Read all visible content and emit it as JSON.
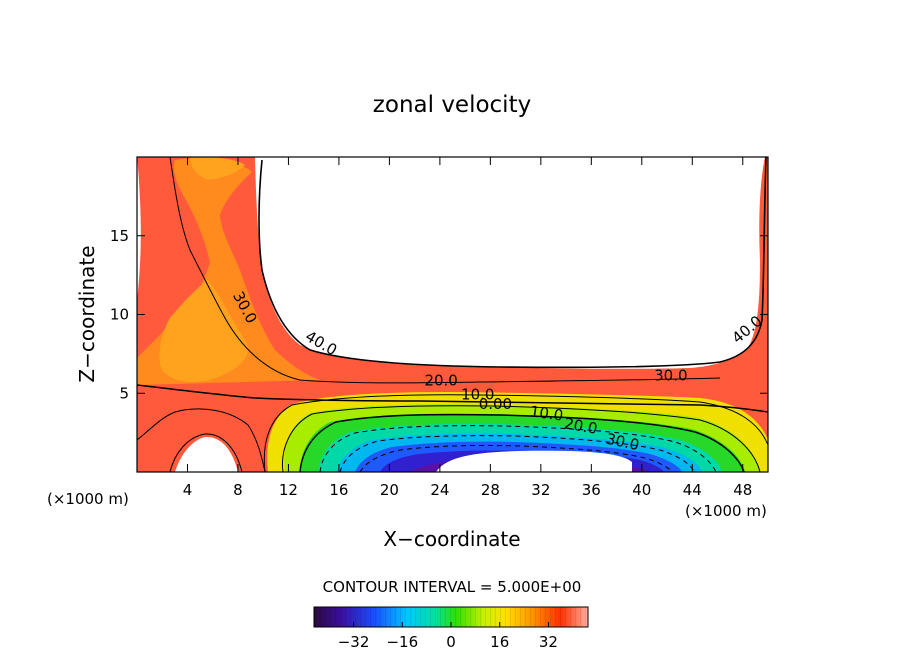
{
  "chart_data": {
    "type": "heatmap",
    "title": "zonal velocity",
    "xlabel": "X−coordinate",
    "ylabel": "Z−coordinate",
    "x_unit_left": "(×1000 m)",
    "x_unit_right": "(×1000 m)",
    "xlim": [
      0,
      50
    ],
    "ylim": [
      0,
      20
    ],
    "x_ticks": [
      4,
      8,
      12,
      16,
      20,
      24,
      28,
      32,
      36,
      40,
      44,
      48
    ],
    "y_ticks": [
      5,
      10,
      15
    ],
    "grid": false,
    "contour_interval_label": "CONTOUR INTERVAL = 5.000E+00",
    "contour_interval": 5,
    "contour_labels": [
      {
        "text": "30.0",
        "x": 8.2,
        "y": 10.3
      },
      {
        "text": "40.0",
        "x": 14.4,
        "y": 7.9
      },
      {
        "text": "40.0",
        "x": 48.6,
        "y": 8.8
      },
      {
        "text": "20.0",
        "x": 24.1,
        "y": 5.5
      },
      {
        "text": "10.0",
        "x": 27.0,
        "y": 4.6
      },
      {
        "text": "0.00",
        "x": 28.4,
        "y": 4.0
      },
      {
        "text": "30.0",
        "x": 42.3,
        "y": 5.8
      },
      {
        "text": "10.0",
        "x": 32.4,
        "y": 3.4
      },
      {
        "text": "20.0",
        "x": 35.1,
        "y": 2.6
      },
      {
        "text": "30.0",
        "x": 38.4,
        "y": 1.6
      }
    ],
    "colorbar": {
      "ticks": [
        "−32",
        "−16",
        "0",
        "16",
        "32"
      ],
      "tick_values": [
        -32,
        -16,
        0,
        16,
        32
      ],
      "range": [
        -45,
        45
      ]
    }
  }
}
